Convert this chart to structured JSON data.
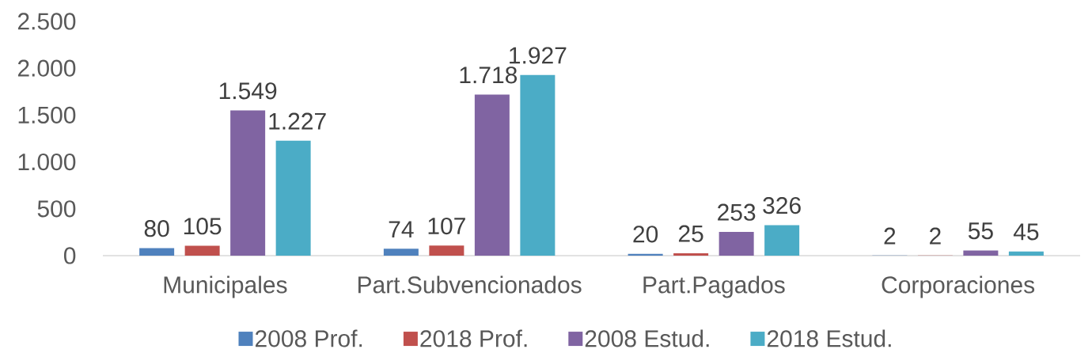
{
  "chart_data": {
    "type": "bar",
    "categories": [
      "Municipales",
      "Part.Subvencionados",
      "Part.Pagados",
      "Corporaciones"
    ],
    "series": [
      {
        "name": "2008 Prof.",
        "color": "#4f81bd",
        "values": [
          80,
          74,
          20,
          2
        ],
        "value_labels": [
          "80",
          "74",
          "20",
          "2"
        ]
      },
      {
        "name": "2018 Prof.",
        "color": "#c0504d",
        "values": [
          105,
          107,
          25,
          2
        ],
        "value_labels": [
          "105",
          "107",
          "25",
          "2"
        ]
      },
      {
        "name": "2008 Estud.",
        "color": "#8064a2",
        "values": [
          1549,
          1718,
          253,
          55
        ],
        "value_labels": [
          "1.549",
          "1.718",
          "253",
          "55"
        ]
      },
      {
        "name": "2018 Estud.",
        "color": "#4bacc6",
        "values": [
          1227,
          1927,
          326,
          45
        ],
        "value_labels": [
          "1.227",
          "1.927",
          "326",
          "45"
        ]
      }
    ],
    "ylim": [
      0,
      2500
    ],
    "yticks": [
      0,
      500,
      {
        "value": 1000,
        "label": "1.000"
      },
      {
        "value": 1500,
        "label": "1.500"
      },
      {
        "value": 2000,
        "label": "2.000"
      },
      {
        "value": 2500,
        "label": "2.500"
      }
    ],
    "legend": "bottom"
  }
}
